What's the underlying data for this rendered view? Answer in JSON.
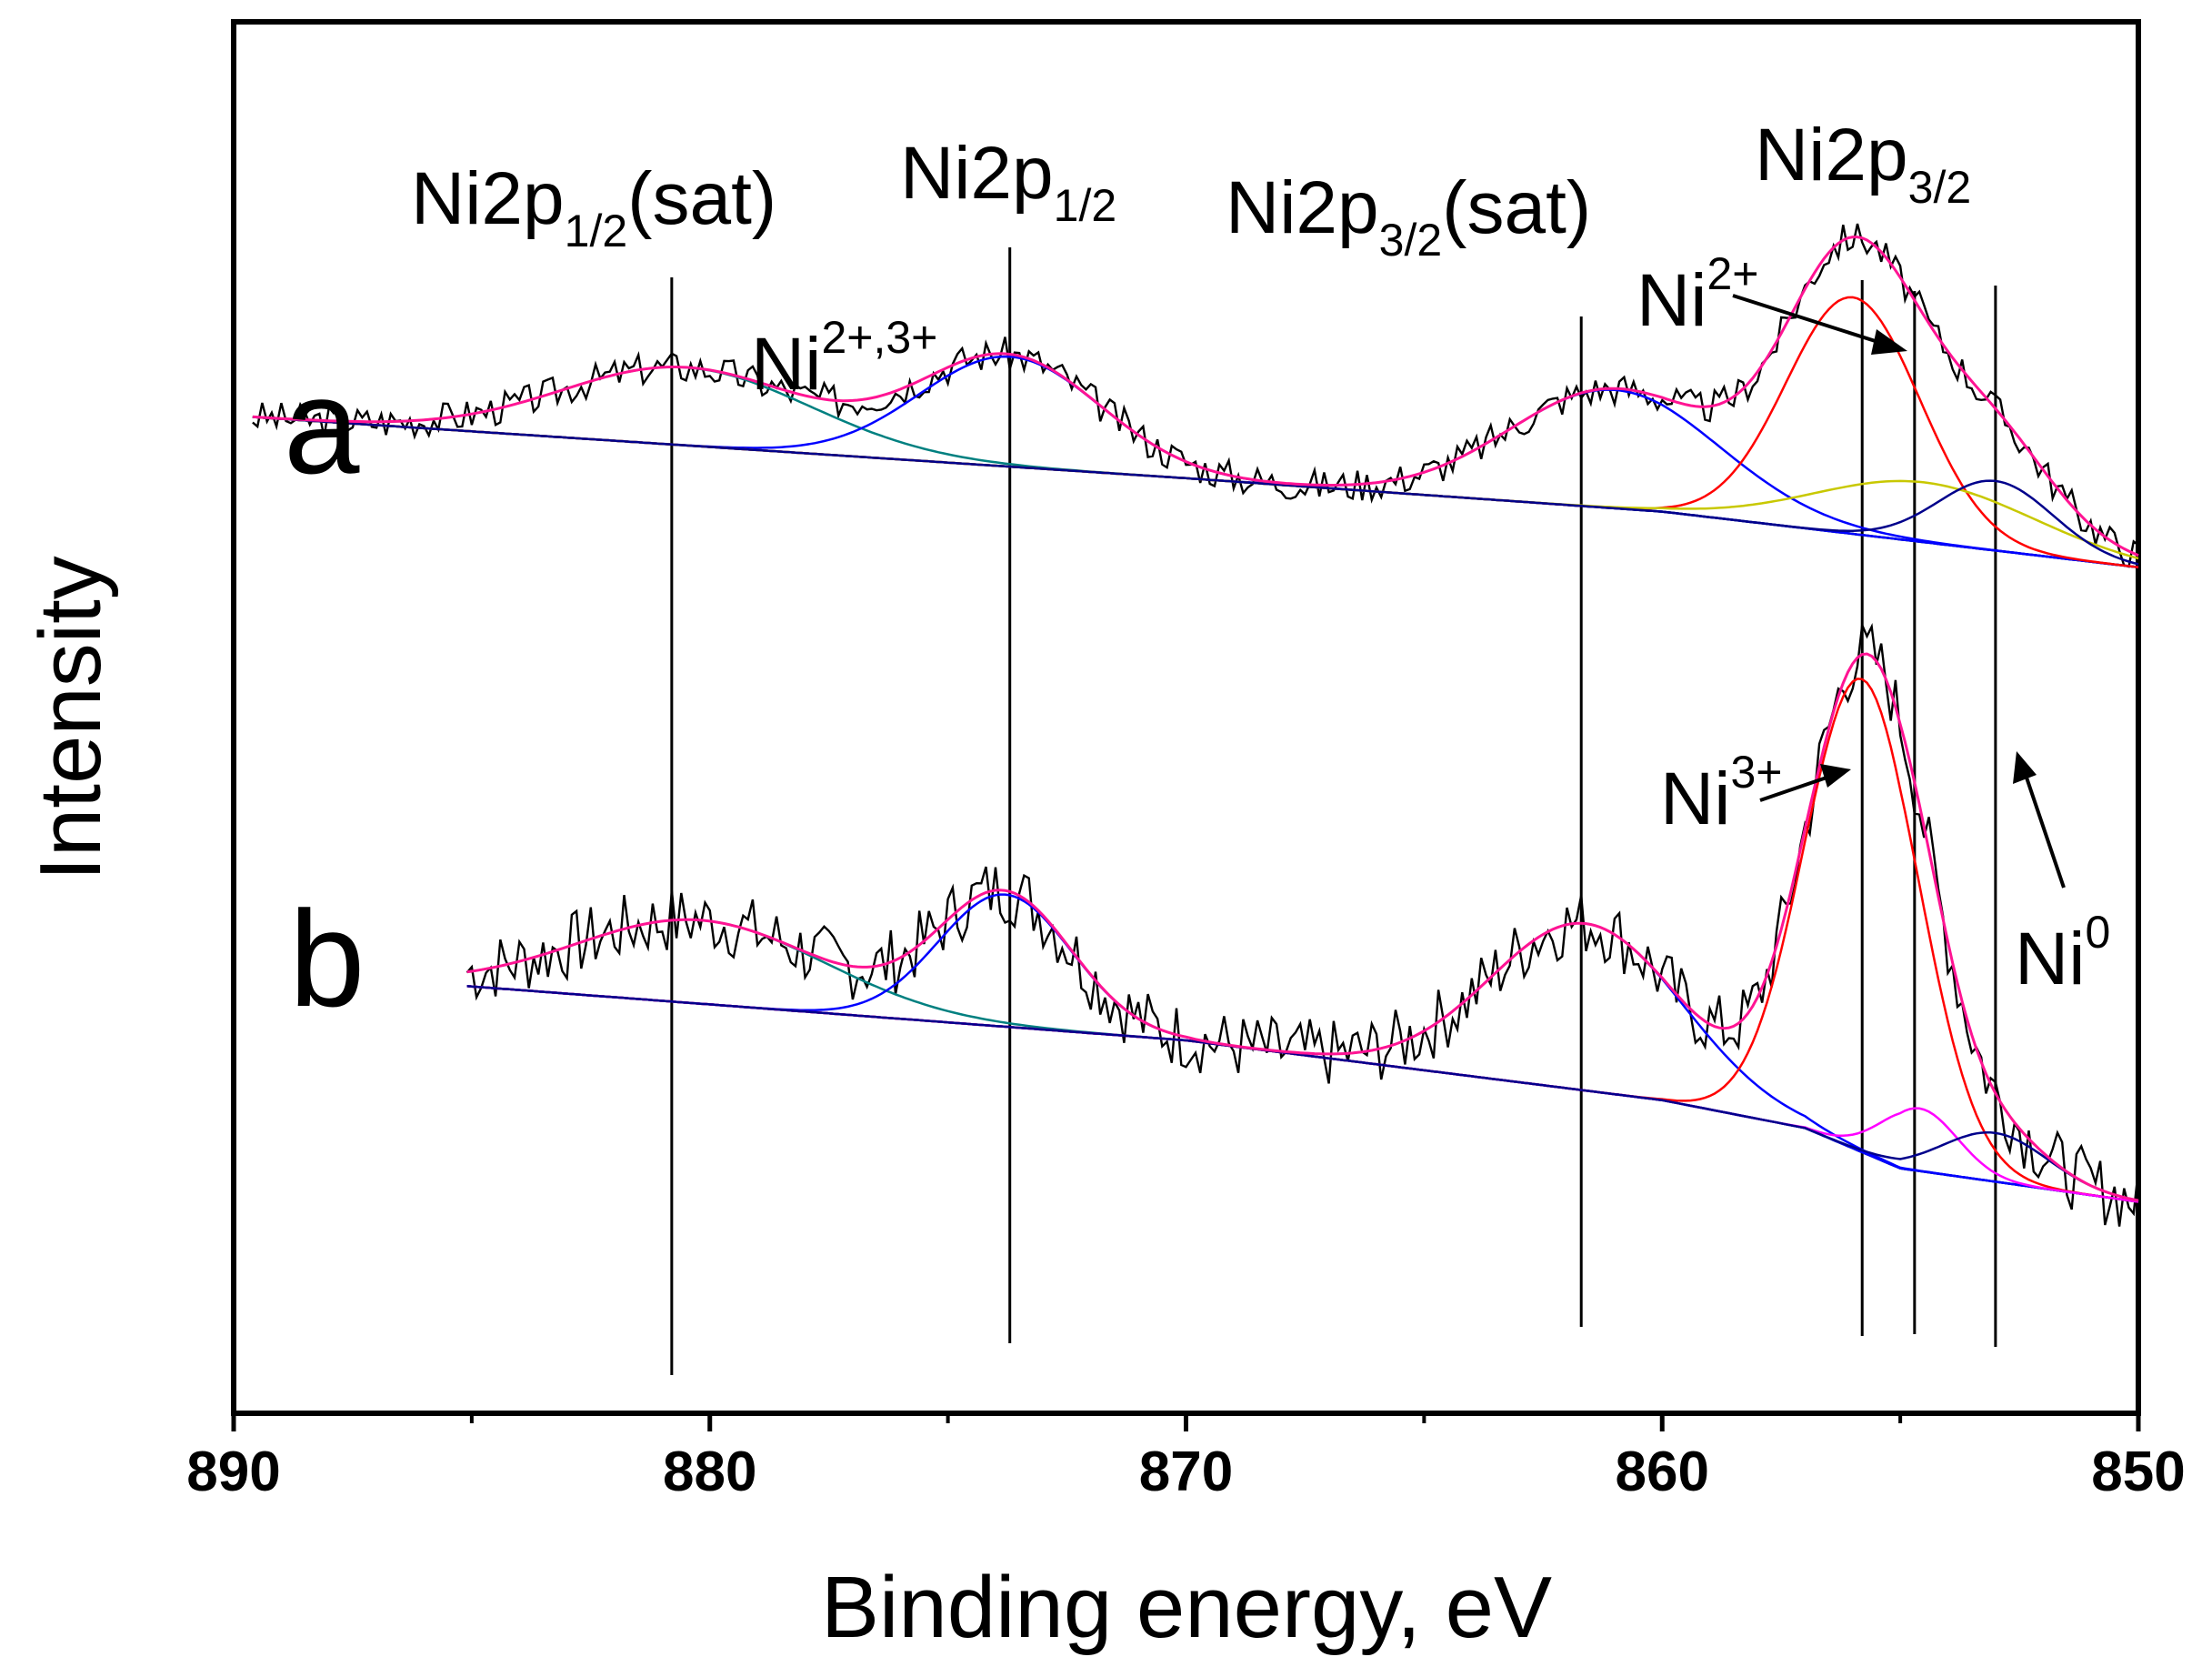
{
  "chart_data": {
    "type": "line",
    "title": "",
    "xlabel": "Binding energy, eV",
    "ylabel": "Intensity",
    "xlim": [
      890,
      850
    ],
    "ylim": [
      0,
      1
    ],
    "x_ticks": [
      890,
      880,
      870,
      860,
      850
    ],
    "x_tick_labels": [
      "890",
      "880",
      "870",
      "860",
      "850"
    ],
    "grid": false,
    "colors": {
      "raw": "#000000",
      "envelope": "#ff1493",
      "background": "#8b0000",
      "ni2plus": "#ff0000",
      "ni3plus": "#c8c800",
      "ni3plus_b": "#ff00ff",
      "ni0": "#00008b",
      "sat": "#0000ff",
      "sat_sat": "#008080",
      "ref_line": "#000000"
    },
    "reference_lines": [
      880.8,
      873.7,
      861.7,
      855.8,
      854.7,
      853.0
    ],
    "peak_labels": [
      {
        "main": "Ni2p",
        "sub": "1/2",
        "suffix": "(sat)",
        "x": 879.5
      },
      {
        "main": "Ni2p",
        "sub": "1/2",
        "suffix": "",
        "x": 873.2
      },
      {
        "main": "Ni2p",
        "sub": "3/2",
        "suffix": "(sat)",
        "x": 861.2
      },
      {
        "main": "Ni2p",
        "sub": "3/2",
        "suffix": "",
        "x": 855.0
      }
    ],
    "annotations": [
      {
        "base": "Ni",
        "sup": "2+,3+"
      },
      {
        "base": "Ni",
        "sup": "2+"
      },
      {
        "base": "Ni",
        "sup": "3+"
      },
      {
        "base": "Ni",
        "sup": "0"
      }
    ],
    "panels": [
      {
        "label": "a",
        "x_start": 889.6,
        "noise_amp": 0.012,
        "seed": 3,
        "background": [
          [
            889.6,
            0.716
          ],
          [
            870,
            0.672
          ],
          [
            860,
            0.648
          ],
          [
            855,
            0.628
          ],
          [
            850,
            0.608
          ]
        ],
        "peaks": [
          {
            "name": "Ni2p1/2 sat",
            "center": 880.5,
            "height": 0.056,
            "sigma": 2.6
          },
          {
            "name": "Ni2p1/2",
            "center": 873.7,
            "height": 0.079,
            "sigma": 1.9
          },
          {
            "name": "Ni2p3/2 sat",
            "center": 861.0,
            "height": 0.085,
            "sigma": 2.2
          },
          {
            "name": "Ni2+",
            "center": 856.0,
            "height": 0.17,
            "sigma": 1.4
          },
          {
            "name": "Ni3+",
            "center": 854.5,
            "height": 0.043,
            "sigma": 2.3
          },
          {
            "name": "Ni0",
            "center": 853.0,
            "height": 0.05,
            "sigma": 1.2
          }
        ]
      },
      {
        "label": "b",
        "x_start": 885.1,
        "noise_amp": 0.025,
        "seed": 7,
        "background": [
          [
            885.1,
            0.307
          ],
          [
            870,
            0.268
          ],
          [
            860,
            0.225
          ],
          [
            857,
            0.205
          ],
          [
            855,
            0.176
          ],
          [
            850,
            0.152
          ]
        ],
        "peaks": [
          {
            "name": "Ni2p1/2 sat",
            "center": 880.2,
            "height": 0.06,
            "sigma": 2.6
          },
          {
            "name": "Ni2p1/2",
            "center": 873.8,
            "height": 0.095,
            "sigma": 1.4
          },
          {
            "name": "Ni2p3/2 sat",
            "center": 861.6,
            "height": 0.12,
            "sigma": 2.0
          },
          {
            "name": "Ni3+",
            "center": 855.8,
            "height": 0.34,
            "sigma": 1.2
          },
          {
            "name": "Ni2+",
            "center": 854.6,
            "height": 0.045,
            "sigma": 0.8
          },
          {
            "name": "Ni0",
            "center": 853.0,
            "height": 0.035,
            "sigma": 1.1
          }
        ]
      }
    ]
  }
}
